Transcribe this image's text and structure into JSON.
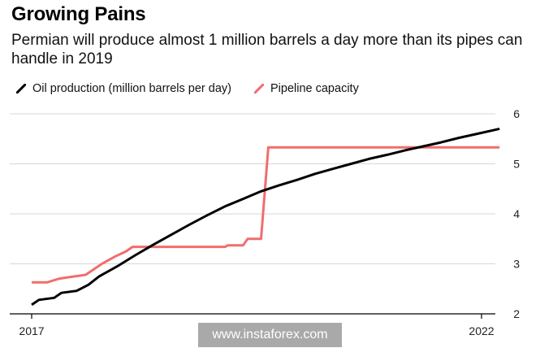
{
  "header": {
    "title": "Growing Pains",
    "subtitle": "Permian will produce almost 1 million barrels a day more than its pipes can handle in 2019"
  },
  "legend": {
    "items": [
      {
        "label": "Oil production (million barrels per day)",
        "color": "#000000"
      },
      {
        "label": "Pipeline capacity",
        "color": "#f26d6d"
      }
    ]
  },
  "watermark": "www.instaforex.com",
  "chart_data": {
    "type": "line",
    "title": "Growing Pains",
    "subtitle": "Permian will produce almost 1 million barrels a day more than its pipes can handle in 2019",
    "xlabel": "",
    "ylabel": "",
    "xlim": [
      2017,
      2022
    ],
    "ylim": [
      2,
      6
    ],
    "x_ticks": [
      2017,
      2022
    ],
    "x_tick_labels": [
      "2017",
      "2022"
    ],
    "y_ticks": [
      2,
      3,
      4,
      5,
      6
    ],
    "y_tick_labels": [
      "2",
      "3",
      "4",
      "5",
      "6"
    ],
    "y_axis_side": "right",
    "grid": "horizontal",
    "legend_position": "top-left",
    "series": [
      {
        "name": "Oil production (million barrels per day)",
        "color": "#000000",
        "points": [
          [
            2017.0,
            2.18
          ],
          [
            2017.08,
            2.28
          ],
          [
            2017.25,
            2.32
          ],
          [
            2017.33,
            2.42
          ],
          [
            2017.5,
            2.46
          ],
          [
            2017.63,
            2.58
          ],
          [
            2017.75,
            2.75
          ],
          [
            2017.95,
            2.95
          ],
          [
            2018.15,
            3.17
          ],
          [
            2018.35,
            3.38
          ],
          [
            2018.55,
            3.58
          ],
          [
            2018.75,
            3.78
          ],
          [
            2018.95,
            3.97
          ],
          [
            2019.15,
            4.15
          ],
          [
            2019.35,
            4.3
          ],
          [
            2019.55,
            4.45
          ],
          [
            2019.75,
            4.57
          ],
          [
            2019.95,
            4.68
          ],
          [
            2020.15,
            4.8
          ],
          [
            2020.35,
            4.9
          ],
          [
            2020.55,
            5.0
          ],
          [
            2020.75,
            5.1
          ],
          [
            2020.95,
            5.18
          ],
          [
            2021.15,
            5.27
          ],
          [
            2021.35,
            5.35
          ],
          [
            2021.55,
            5.43
          ],
          [
            2021.75,
            5.52
          ],
          [
            2021.95,
            5.6
          ],
          [
            2022.15,
            5.68
          ],
          [
            2022.2,
            5.7
          ]
        ]
      },
      {
        "name": "Pipeline capacity",
        "color": "#f26d6d",
        "points": [
          [
            2017.0,
            2.63
          ],
          [
            2017.17,
            2.63
          ],
          [
            2017.3,
            2.7
          ],
          [
            2017.4,
            2.73
          ],
          [
            2017.6,
            2.78
          ],
          [
            2017.78,
            3.0
          ],
          [
            2017.93,
            3.15
          ],
          [
            2018.05,
            3.25
          ],
          [
            2018.12,
            3.34
          ],
          [
            2019.15,
            3.34
          ],
          [
            2019.18,
            3.37
          ],
          [
            2019.35,
            3.37
          ],
          [
            2019.4,
            3.5
          ],
          [
            2019.55,
            3.5
          ],
          [
            2019.63,
            5.33
          ],
          [
            2022.2,
            5.33
          ]
        ]
      }
    ]
  }
}
